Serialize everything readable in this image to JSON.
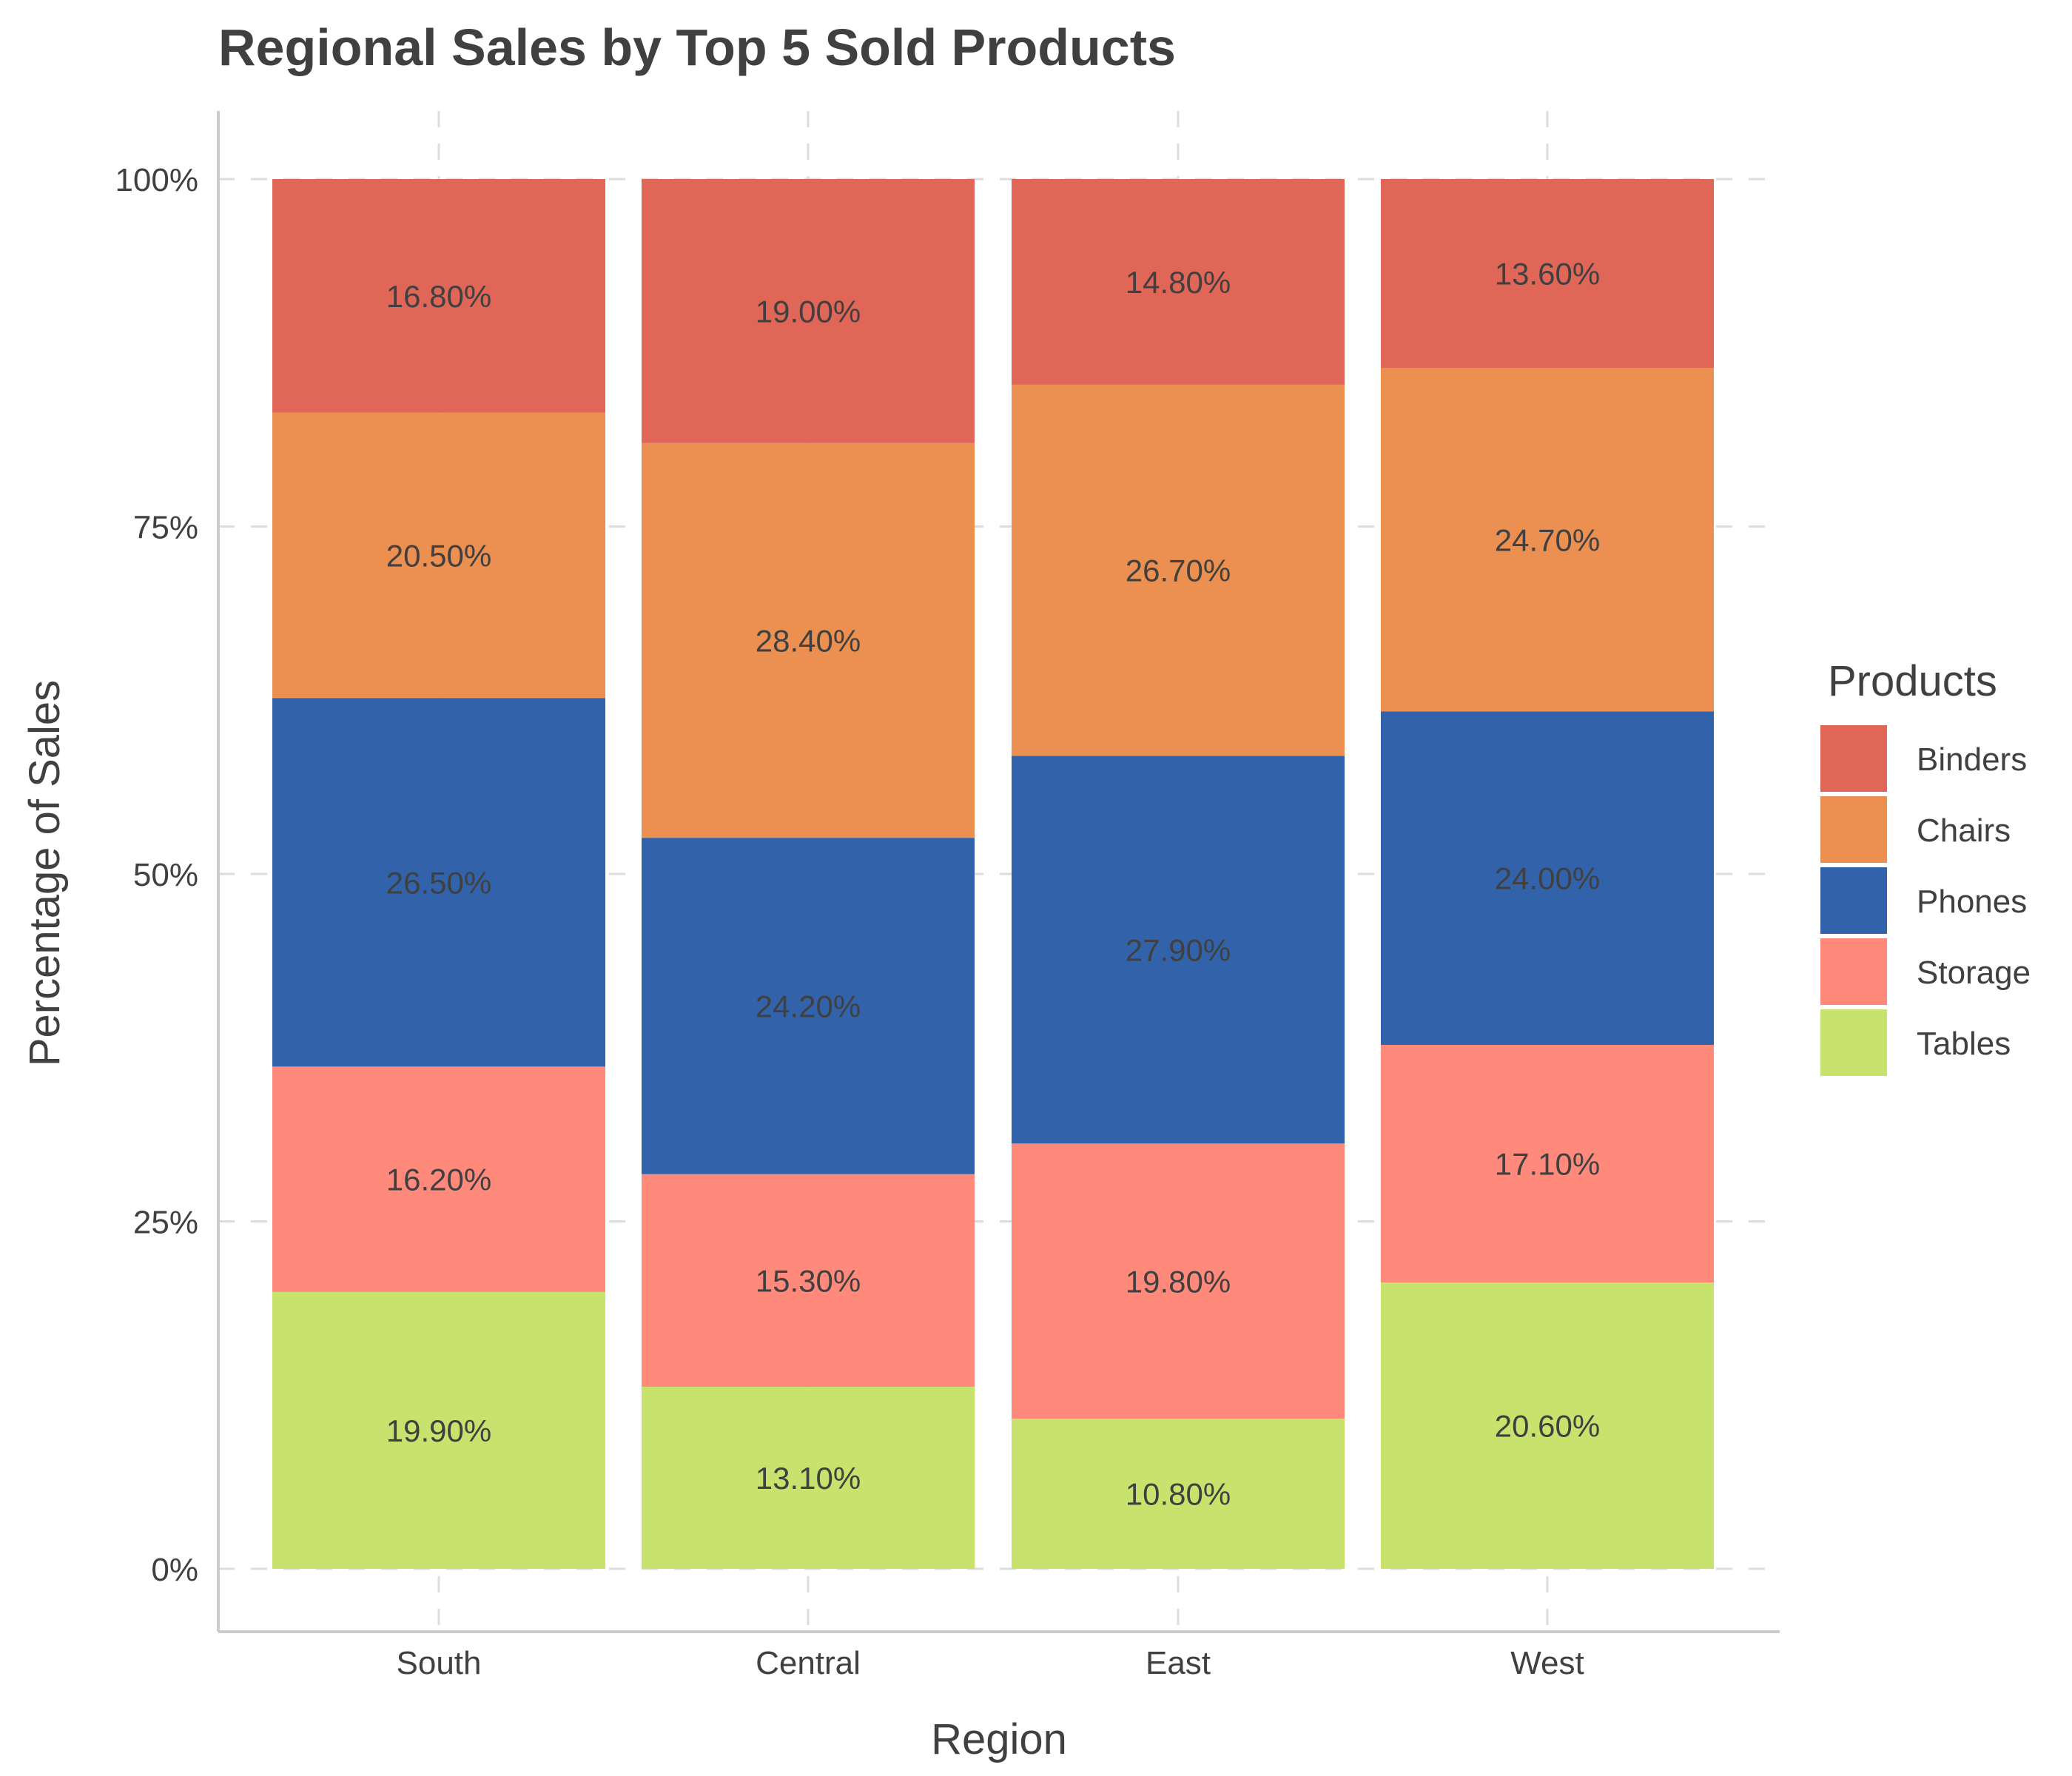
{
  "chart_data": {
    "type": "bar",
    "stacked": true,
    "title": "Regional Sales by Top 5 Sold Products",
    "xlabel": "Region",
    "ylabel": "Percentage of Sales",
    "categories": [
      "South",
      "Central",
      "East",
      "West"
    ],
    "y_ticks": [
      "0%",
      "25%",
      "50%",
      "75%",
      "100%"
    ],
    "ylim": [
      0,
      100
    ],
    "grid": true,
    "legend_title": "Products",
    "legend_position": "right",
    "series": [
      {
        "name": "Tables",
        "color": "#c8e26e",
        "values": [
          19.9,
          13.1,
          10.8,
          20.6
        ],
        "labels": [
          "19.90%",
          "13.10%",
          "10.80%",
          "20.60%"
        ]
      },
      {
        "name": "Storage",
        "color": "#ff8a7c",
        "values": [
          16.2,
          15.3,
          19.8,
          17.1
        ],
        "labels": [
          "16.20%",
          "15.30%",
          "19.80%",
          "17.10%"
        ]
      },
      {
        "name": "Phones",
        "color": "#3263aa",
        "values": [
          26.5,
          24.2,
          27.9,
          24.0
        ],
        "labels": [
          "26.50%",
          "24.20%",
          "27.90%",
          "24.00%"
        ]
      },
      {
        "name": "Chairs",
        "color": "#eb9050",
        "values": [
          20.5,
          28.4,
          26.7,
          24.7
        ],
        "labels": [
          "20.50%",
          "28.40%",
          "26.70%",
          "24.70%"
        ]
      },
      {
        "name": "Binders",
        "color": "#e06657",
        "values": [
          16.8,
          19.0,
          14.8,
          13.6
        ],
        "labels": [
          "16.80%",
          "19.00%",
          "14.80%",
          "13.60%"
        ]
      }
    ],
    "legend_order": [
      "Binders",
      "Chairs",
      "Phones",
      "Storage",
      "Tables"
    ]
  }
}
